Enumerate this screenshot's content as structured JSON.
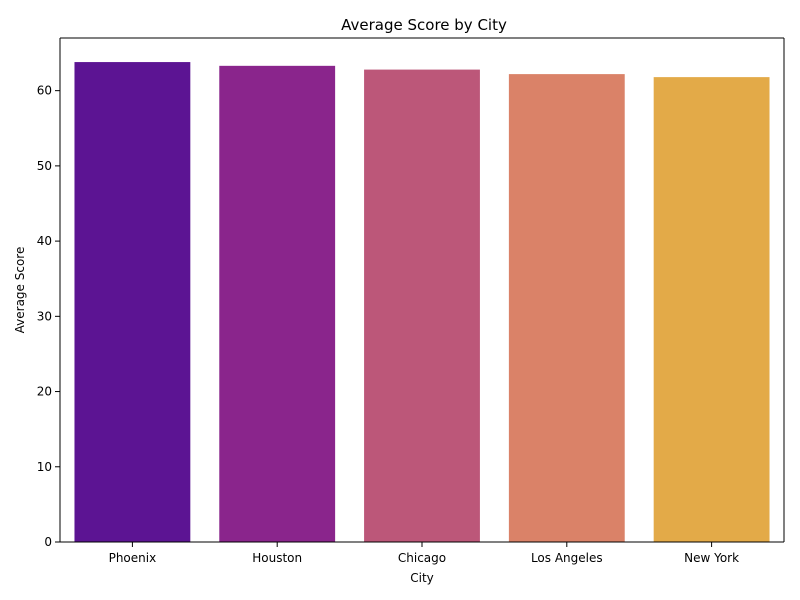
{
  "chart_data": {
    "type": "bar",
    "title": "Average Score by City",
    "xlabel": "City",
    "ylabel": "Average Score",
    "categories": [
      "Phoenix",
      "Houston",
      "Chicago",
      "Los Angeles",
      "New York"
    ],
    "values": [
      63.8,
      63.3,
      62.8,
      62.2,
      61.8
    ],
    "ylim": [
      0,
      67
    ],
    "yticks": [
      0,
      10,
      20,
      30,
      40,
      50,
      60
    ],
    "colors": [
      "#5c1493",
      "#8a258c",
      "#bc5779",
      "#da8268",
      "#e3aa48"
    ],
    "grid": false,
    "legend": "none"
  }
}
